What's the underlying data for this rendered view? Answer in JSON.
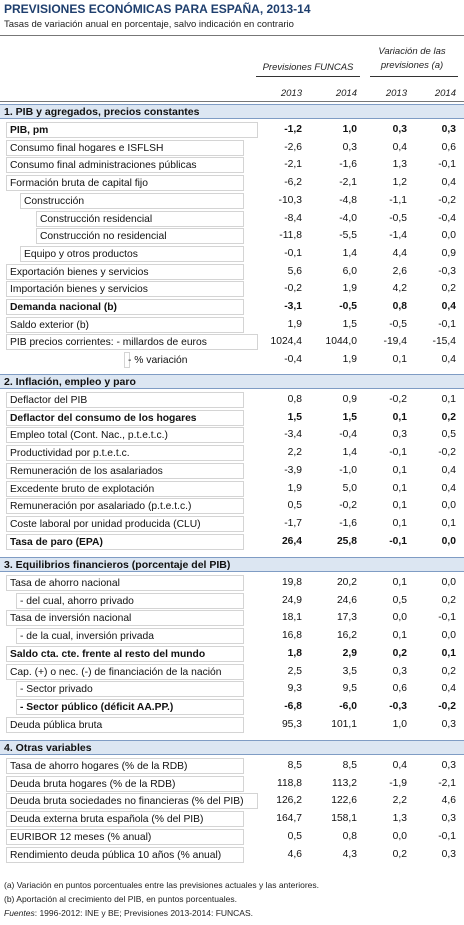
{
  "header": {
    "title": "PREVISIONES ECONÓMICAS PARA ESPAÑA, 2013-14",
    "subtitle": "Tasas de variación anual en porcentaje, salvo indicación en contrario",
    "group_1": "Previsiones FUNCAS",
    "group_2": [
      "Variación de las",
      "previsiones (a)"
    ],
    "years": [
      "2013",
      "2014",
      "2013",
      "2014"
    ]
  },
  "sections": [
    {
      "title": "1. PIB y agregados, precios constantes",
      "rows": [
        {
          "label": "PIB, pm",
          "values": [
            "-1,2",
            "1,0",
            "0,3",
            "0,3"
          ]
        },
        {
          "label": "Consumo final hogares e ISFLSH",
          "values": [
            "-2,6",
            "0,3",
            "0,4",
            "0,6"
          ]
        },
        {
          "label": "Consumo final administraciones públicas",
          "values": [
            "-2,1",
            "-1,6",
            "1,3",
            "-0,1"
          ]
        },
        {
          "label": "Formación bruta de capital fijo",
          "values": [
            "-6,2",
            "-2,1",
            "1,2",
            "0,4"
          ]
        },
        {
          "label": "Construcción",
          "values": [
            "-10,3",
            "-4,8",
            "-1,1",
            "-0,2"
          ]
        },
        {
          "label": "Construcción residencial",
          "values": [
            "-8,4",
            "-4,0",
            "-0,5",
            "-0,4"
          ]
        },
        {
          "label": "Construcción no residencial",
          "values": [
            "-11,8",
            "-5,5",
            "-1,4",
            "0,0"
          ]
        },
        {
          "label": "Equipo y otros productos",
          "values": [
            "-0,1",
            "1,4",
            "4,4",
            "0,9"
          ]
        },
        {
          "label": "Exportación bienes y servicios",
          "values": [
            "5,6",
            "6,0",
            "2,6",
            "-0,3"
          ]
        },
        {
          "label": "Importación bienes y servicios",
          "values": [
            "-0,2",
            "1,9",
            "4,2",
            "0,2"
          ]
        },
        {
          "label": "Demanda nacional (b)",
          "values": [
            "-3,1",
            "-0,5",
            "0,8",
            "0,4"
          ]
        },
        {
          "label": "Saldo exterior (b)",
          "values": [
            "1,9",
            "1,5",
            "-0,5",
            "-0,1"
          ]
        },
        {
          "label": "PIB precios corrientes: - millardos de euros",
          "values": [
            "1024,4",
            "1044,0",
            "-19,4",
            "-15,4"
          ]
        },
        {
          "label": "- % variación",
          "values": [
            "-0,4",
            "1,9",
            "0,1",
            "0,4"
          ]
        }
      ]
    },
    {
      "title": "2. Inflación, empleo y paro",
      "rows": [
        {
          "label": "Deflactor del PIB",
          "values": [
            "0,8",
            "0,9",
            "-0,2",
            "0,1"
          ]
        },
        {
          "label": "Deflactor del consumo de los hogares",
          "values": [
            "1,5",
            "1,5",
            "0,1",
            "0,2"
          ]
        },
        {
          "label": "Empleo total (Cont. Nac., p.t.e.t.c.)",
          "values": [
            "-3,4",
            "-0,4",
            "0,3",
            "0,5"
          ]
        },
        {
          "label": "Productividad por p.t.e.t.c.",
          "values": [
            "2,2",
            "1,4",
            "-0,1",
            "-0,2"
          ]
        },
        {
          "label": "Remuneración de los asalariados",
          "values": [
            "-3,9",
            "-1,0",
            "0,1",
            "0,4"
          ]
        },
        {
          "label": "Excedente bruto de explotación",
          "values": [
            "1,9",
            "5,0",
            "0,1",
            "0,4"
          ]
        },
        {
          "label": "Remuneración por asalariado (p.t.e.t.c.)",
          "values": [
            "0,5",
            "-0,2",
            "0,1",
            "0,0"
          ]
        },
        {
          "label": "Coste laboral por unidad producida (CLU)",
          "values": [
            "-1,7",
            "-1,6",
            "0,1",
            "0,1"
          ]
        },
        {
          "label": "Tasa de paro (EPA)",
          "values": [
            "26,4",
            "25,8",
            "-0,1",
            "0,0"
          ]
        }
      ]
    },
    {
      "title": "3. Equilibrios financieros (porcentaje del PIB)",
      "rows": [
        {
          "label": "Tasa de ahorro nacional",
          "values": [
            "19,8",
            "20,2",
            "0,1",
            "0,0"
          ]
        },
        {
          "label": "- del cual, ahorro privado",
          "values": [
            "24,9",
            "24,6",
            "0,5",
            "0,2"
          ]
        },
        {
          "label": "Tasa de inversión nacional",
          "values": [
            "18,1",
            "17,3",
            "0,0",
            "-0,1"
          ]
        },
        {
          "label": "- de la cual, inversión privada",
          "values": [
            "16,8",
            "16,2",
            "0,1",
            "0,0"
          ]
        },
        {
          "label": "Saldo cta. cte. frente al resto del mundo",
          "values": [
            "1,8",
            "2,9",
            "0,2",
            "0,1"
          ]
        },
        {
          "label": "Cap. (+) o nec. (-) de financiación de la nación",
          "values": [
            "2,5",
            "3,5",
            "0,3",
            "0,2"
          ]
        },
        {
          "label": "- Sector privado",
          "values": [
            "9,3",
            "9,5",
            "0,6",
            "0,4"
          ]
        },
        {
          "label": "- Sector público (déficit AA.PP.)",
          "values": [
            "-6,8",
            "-6,0",
            "-0,3",
            "-0,2"
          ]
        },
        {
          "label": "Deuda pública bruta",
          "values": [
            "95,3",
            "101,1",
            "1,0",
            "0,3"
          ]
        }
      ]
    },
    {
      "title": "4. Otras variables",
      "rows": [
        {
          "label": "Tasa de ahorro hogares (% de la RDB)",
          "values": [
            "8,5",
            "8,5",
            "0,4",
            "0,3"
          ]
        },
        {
          "label": "Deuda bruta hogares (% de la RDB)",
          "values": [
            "118,8",
            "113,2",
            "-1,9",
            "-2,1"
          ]
        },
        {
          "label": "Deuda bruta sociedades no financieras (% del PIB)",
          "values": [
            "126,2",
            "122,6",
            "2,2",
            "4,6"
          ]
        },
        {
          "label": "Deuda externa bruta española (% del PIB)",
          "values": [
            "164,7",
            "158,1",
            "1,3",
            "0,3"
          ]
        },
        {
          "label": "EURIBOR 12 meses (% anual)",
          "values": [
            "0,5",
            "0,8",
            "0,0",
            "-0,1"
          ]
        },
        {
          "label": "Rendimiento deuda pública 10 años (% anual)",
          "values": [
            "4,6",
            "4,3",
            "0,2",
            "0,3"
          ]
        }
      ]
    }
  ],
  "footnotes": {
    "a": "(a) Variación en puntos porcentuales entre las previsiones actuales y las anteriores.",
    "b": "(b) Aportación al crecimiento del PIB, en puntos porcentuales.",
    "sources_label": "Fuentes",
    "sources": ": 1996-2012: INE y BE; Previsiones 2013-2014: FUNCAS."
  }
}
